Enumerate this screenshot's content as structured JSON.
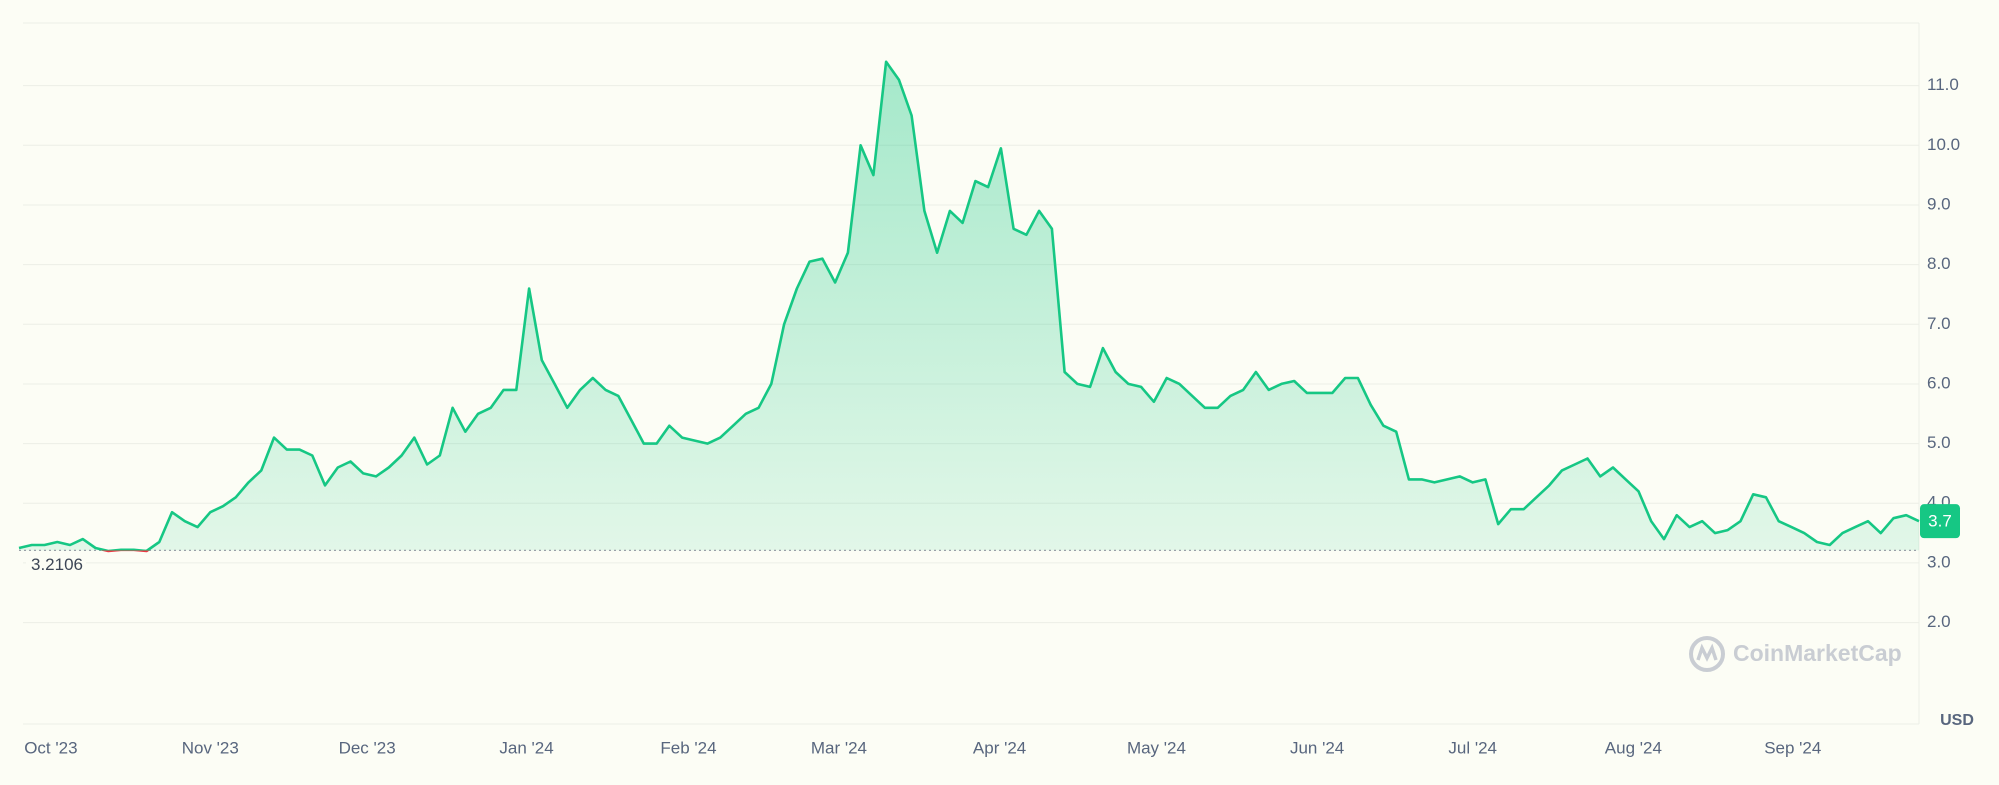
{
  "chart_data": {
    "type": "line",
    "color": "#16c784",
    "down_color": "#ea3943",
    "currency": "USD",
    "watermark": "CoinMarketCap",
    "reference_line": 3.2106,
    "values": [
      3.25,
      3.3,
      3.3,
      3.35,
      3.3,
      3.4,
      3.25,
      3.2,
      3.22,
      3.22,
      3.2,
      3.35,
      3.85,
      3.7,
      3.6,
      3.85,
      3.95,
      4.1,
      4.35,
      4.55,
      5.1,
      4.9,
      4.9,
      4.8,
      4.3,
      4.6,
      4.7,
      4.5,
      4.45,
      4.6,
      4.8,
      5.1,
      4.65,
      4.8,
      5.6,
      5.2,
      5.5,
      5.6,
      5.9,
      5.9,
      7.6,
      6.4,
      6.0,
      5.6,
      5.9,
      6.1,
      5.9,
      5.8,
      5.4,
      5.0,
      5.0,
      5.3,
      5.1,
      5.05,
      5.0,
      5.1,
      5.3,
      5.5,
      5.6,
      6.0,
      7.0,
      7.6,
      8.05,
      8.1,
      7.7,
      8.2,
      10.0,
      9.5,
      11.4,
      11.1,
      10.5,
      8.9,
      8.2,
      8.9,
      8.7,
      9.4,
      9.3,
      9.95,
      8.6,
      8.5,
      8.9,
      8.6,
      6.2,
      6.0,
      5.95,
      6.6,
      6.2,
      6.0,
      5.95,
      5.7,
      6.1,
      6.0,
      5.8,
      5.6,
      5.6,
      5.8,
      5.9,
      6.2,
      5.9,
      6.0,
      6.05,
      5.85,
      5.85,
      5.85,
      6.1,
      6.1,
      5.65,
      5.3,
      5.2,
      4.4,
      4.4,
      4.35,
      4.4,
      4.45,
      4.35,
      4.4,
      3.65,
      3.9,
      3.9,
      4.1,
      4.3,
      4.55,
      4.65,
      4.75,
      4.45,
      4.6,
      4.4,
      4.2,
      3.7,
      3.4,
      3.8,
      3.6,
      3.7,
      3.5,
      3.55,
      3.7,
      4.15,
      4.1,
      3.7,
      3.6,
      3.5,
      3.35,
      3.3,
      3.5,
      3.6,
      3.7,
      3.5,
      3.75,
      3.8,
      3.7
    ],
    "xlim": [
      0,
      149
    ],
    "xticks": [
      {
        "value": 2.5,
        "label": "Oct '23"
      },
      {
        "value": 15,
        "label": "Nov '23"
      },
      {
        "value": 27.3,
        "label": "Dec '23"
      },
      {
        "value": 39.8,
        "label": "Jan '24"
      },
      {
        "value": 52.5,
        "label": "Feb '24"
      },
      {
        "value": 64.3,
        "label": "Mar '24"
      },
      {
        "value": 76.9,
        "label": "Apr '24"
      },
      {
        "value": 89.2,
        "label": "May '24"
      },
      {
        "value": 101.8,
        "label": "Jun '24"
      },
      {
        "value": 114,
        "label": "Jul '24"
      },
      {
        "value": 126.6,
        "label": "Aug '24"
      },
      {
        "value": 139.1,
        "label": "Sep '24"
      }
    ],
    "ylim": [
      0.3,
      12.05
    ],
    "yticks": [
      {
        "value": 2,
        "label": "2.0"
      },
      {
        "value": 3,
        "label": "3.0"
      },
      {
        "value": 4,
        "label": "4.0"
      },
      {
        "value": 5,
        "label": "5.0"
      },
      {
        "value": 6,
        "label": "6.0"
      },
      {
        "value": 7,
        "label": "7.0"
      },
      {
        "value": 8,
        "label": "8.0"
      },
      {
        "value": 9,
        "label": "9.0"
      },
      {
        "value": 10,
        "label": "10.0"
      },
      {
        "value": 11,
        "label": "11.0"
      }
    ],
    "grid": true
  }
}
